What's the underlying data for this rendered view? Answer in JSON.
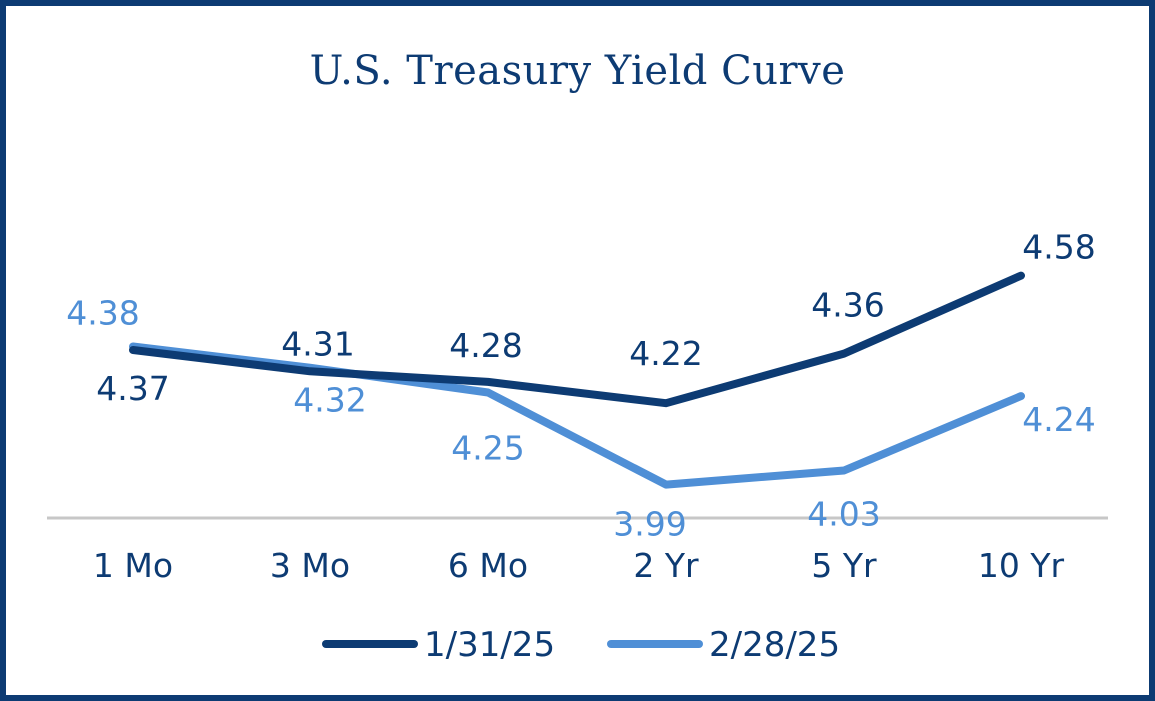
{
  "chart_data": {
    "type": "line",
    "title": "U.S. Treasury Yield Curve",
    "categories": [
      "1 Mo",
      "3 Mo",
      "6 Mo",
      "2 Yr",
      "5 Yr",
      "10 Yr"
    ],
    "series": [
      {
        "name": "1/31/25",
        "values": [
          4.37,
          4.31,
          4.28,
          4.22,
          4.36,
          4.58
        ],
        "color": "#0d3b73"
      },
      {
        "name": "2/28/25",
        "values": [
          4.38,
          4.32,
          4.25,
          3.99,
          4.03,
          4.24
        ],
        "color": "#4f8fd6"
      }
    ],
    "legend": "bottom-center",
    "grid": false
  }
}
